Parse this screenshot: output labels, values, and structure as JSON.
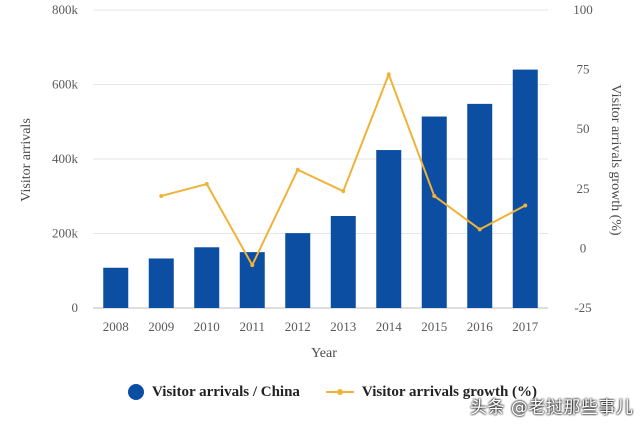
{
  "chart_data": {
    "type": "bar",
    "xlabel": "Year",
    "ylabel": "Visitor arrivals",
    "y2label": "Visitor arrivals growth (%)",
    "categories": [
      "2008",
      "2009",
      "2010",
      "2011",
      "2012",
      "2013",
      "2014",
      "2015",
      "2016",
      "2017"
    ],
    "ylim": [
      0,
      800000
    ],
    "y_ticks": [
      0,
      200000,
      400000,
      600000,
      800000
    ],
    "y_tick_labels": [
      "0",
      "200k",
      "400k",
      "600k",
      "800k"
    ],
    "y2lim": [
      -25,
      100
    ],
    "y2_ticks": [
      -25,
      0,
      25,
      50,
      75,
      100
    ],
    "y2_tick_labels": [
      "-25",
      "0",
      "25",
      "50",
      "75",
      "100"
    ],
    "grid": true,
    "legend_position": "bottom",
    "series": [
      {
        "name": "Visitor arrivals / China",
        "type": "bar",
        "axis": "left",
        "color": "#0b4ea2",
        "values": [
          108000,
          133000,
          163000,
          150000,
          201000,
          247000,
          424000,
          514000,
          548000,
          640000
        ]
      },
      {
        "name": "Visitor arrivals growth (%)",
        "type": "line",
        "axis": "right",
        "color": "#f0b238",
        "values": [
          null,
          22,
          27,
          -7,
          33,
          24,
          73,
          22,
          8,
          18
        ]
      }
    ]
  },
  "watermark": {
    "text": "头条 @老挝那些事儿",
    "color": "#ffffff"
  }
}
